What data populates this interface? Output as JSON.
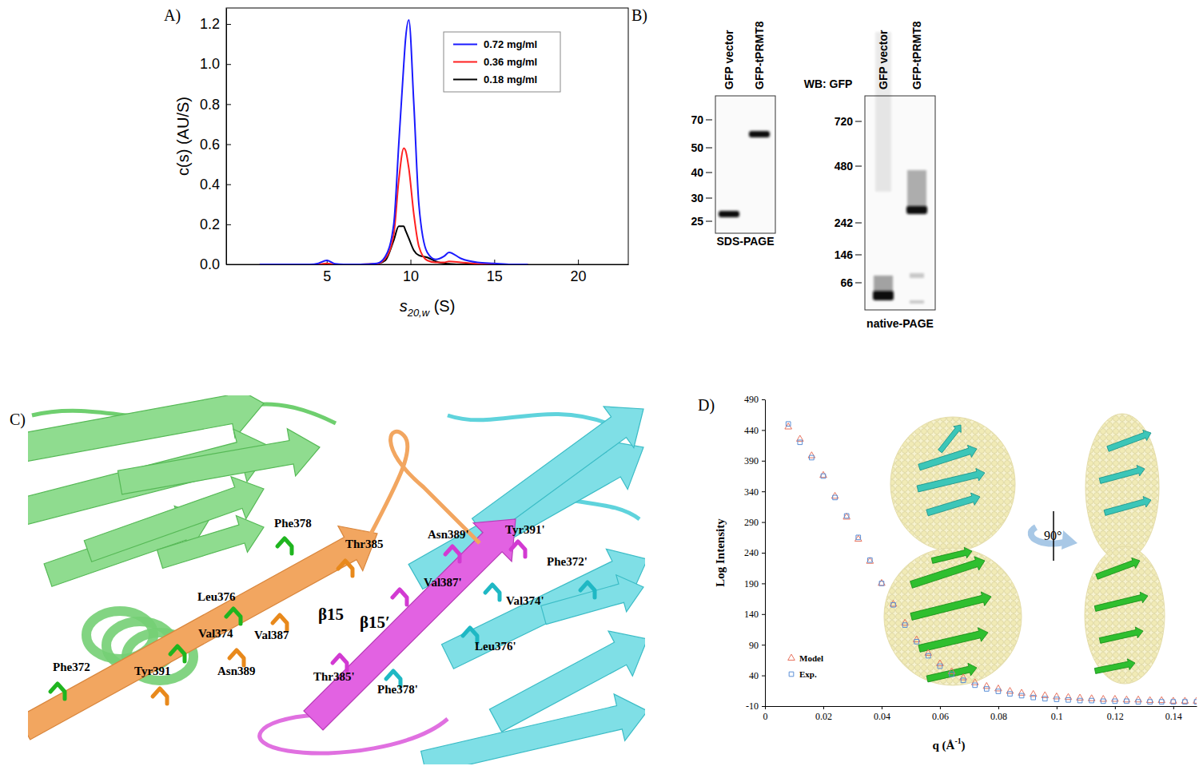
{
  "panel_labels": [
    "A)",
    "B)",
    "C)",
    "D)"
  ],
  "chart_data": [
    {
      "type": "line",
      "xlabel": {
        "main": "s",
        "sub": "20,w",
        "after": " (S)"
      },
      "ylabel": "c(s) (AU/S)",
      "x": [
        1,
        2,
        3,
        4,
        4.5,
        5,
        5.5,
        6,
        7,
        8,
        8.5,
        9,
        9.3,
        9.6,
        9.7,
        9.9,
        10.2,
        10.5,
        11,
        11.5,
        12,
        12.3,
        13,
        14,
        15,
        16,
        17
      ],
      "series": [
        {
          "name": "0.72 mg/ml",
          "color": "#1a1aff",
          "values": [
            0,
            0,
            0,
            0,
            0.005,
            0.02,
            0.003,
            0,
            0,
            0.005,
            0.04,
            0.2,
            0.6,
            1.0,
            1.12,
            1.22,
            0.8,
            0.3,
            0.06,
            0.025,
            0.04,
            0.06,
            0.03,
            0.01,
            0.005,
            0,
            0
          ]
        },
        {
          "name": "0.36 mg/ml",
          "color": "#ff2020",
          "values": [
            0,
            0,
            0,
            0,
            0,
            0.005,
            0,
            0,
            0,
            0.003,
            0.03,
            0.15,
            0.42,
            0.58,
            0.57,
            0.48,
            0.25,
            0.09,
            0.02,
            0.01,
            0.01,
            0.015,
            0.01,
            0.003,
            0,
            0,
            0
          ]
        },
        {
          "name": "0.18 mg/ml",
          "color": "#000000",
          "values": [
            0,
            0,
            0,
            0,
            0,
            0.003,
            0,
            0,
            0,
            0.003,
            0.02,
            0.12,
            0.19,
            0.19,
            0.17,
            0.13,
            0.07,
            0.045,
            0.035,
            0.015,
            0.005,
            0.003,
            0,
            0,
            0,
            0,
            0
          ]
        }
      ],
      "xlim": [
        -1,
        23
      ],
      "xticks": [
        5,
        10,
        15,
        20
      ],
      "ylim": [
        0,
        1.28
      ],
      "yticks": [
        {
          "value": 0,
          "label": "0.0"
        },
        0.2,
        0.4,
        0.6,
        0.8,
        {
          "value": 1,
          "label": "1.0"
        },
        1.2
      ],
      "legend": "upper right",
      "grid": false
    },
    {
      "type": "scatter",
      "xlabel": {
        "main": "q (Å",
        "sup": "-1",
        "after": ")"
      },
      "ylabel": "Log Intensity",
      "x": [
        0.008,
        0.012,
        0.016,
        0.02,
        0.024,
        0.028,
        0.032,
        0.036,
        0.04,
        0.044,
        0.048,
        0.052,
        0.056,
        0.06,
        0.064,
        0.068,
        0.072,
        0.076,
        0.08,
        0.084,
        0.088,
        0.092,
        0.096,
        0.1,
        0.104,
        0.108,
        0.112,
        0.116,
        0.12,
        0.124,
        0.128,
        0.132,
        0.136,
        0.14,
        0.144,
        0.148
      ],
      "series": [
        {
          "name": "Model",
          "color": "#e8735f",
          "marker": "triangle",
          "values": [
            445,
            425,
            398,
            366,
            332,
            298,
            262,
            226,
            190,
            156,
            125,
            98,
            76,
            59,
            46,
            36,
            28,
            22,
            18,
            14,
            11,
            9,
            7,
            5,
            4,
            3,
            2,
            1,
            1,
            0,
            0,
            -1,
            -1,
            -2,
            -2,
            -2
          ]
        },
        {
          "name": "Exp.",
          "color": "#5b8fd6",
          "marker": "square",
          "values": [
            450,
            420,
            395,
            365,
            330,
            300,
            265,
            228,
            190,
            155,
            122,
            95,
            72,
            55,
            42,
            32,
            24,
            18,
            14,
            10,
            7,
            4,
            2,
            1,
            0,
            -1,
            -1,
            -2,
            -2,
            -2,
            -3,
            -3,
            -3,
            -3,
            -3,
            -3
          ]
        }
      ],
      "xlim": [
        0,
        0.148
      ],
      "xticks": [
        0,
        0.02,
        0.04,
        0.06,
        0.08,
        0.1,
        0.12,
        0.14
      ],
      "ylim": [
        -10,
        490
      ],
      "yticks": [
        -10,
        40,
        90,
        140,
        190,
        240,
        290,
        340,
        390,
        440,
        490
      ],
      "legend": "lower left",
      "grid": false,
      "annotations": [
        "90°"
      ]
    }
  ],
  "blot": {
    "antibody": "WB: GFP",
    "gels": [
      {
        "title": "SDS-PAGE",
        "lanes": [
          "GFP vector",
          "GFP-tPRMT8"
        ],
        "markers": [
          70,
          50,
          40,
          30,
          25
        ]
      },
      {
        "title": "native-PAGE",
        "lanes": [
          "GFP vector",
          "GFP-tPRMT8"
        ],
        "markers": [
          720,
          480,
          242,
          146,
          66
        ]
      }
    ]
  },
  "structure": {
    "labels": [
      "Phe378",
      "Leu376",
      "Val374",
      "Val387",
      "Thr385",
      "Phe372",
      "Tyr391",
      "Asn389",
      "Asn389'",
      "Tyr391'",
      "Phe372'",
      "Val387'",
      "Val374'",
      "Leu376'",
      "Thr385'",
      "Phe378'"
    ],
    "strands": [
      "β15",
      "β15′"
    ]
  }
}
